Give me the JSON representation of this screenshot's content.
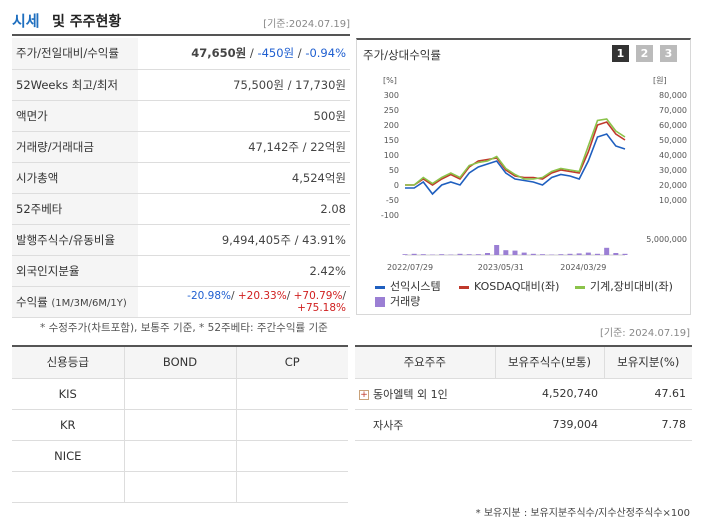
{
  "header": {
    "title_a": "시세",
    "title_b": "및 주주현황",
    "date": "[기준:2024.07.19]"
  },
  "info_rows": [
    {
      "label": "주가/전일대비/수익률",
      "price": "47,650원",
      "sep1": " / ",
      "change": "-450원",
      "sep2": " / ",
      "rate": "-0.94%"
    },
    {
      "label": "52Weeks 최고/최저",
      "value": "75,500원 / 17,730원"
    },
    {
      "label": "액면가",
      "value": "500원"
    },
    {
      "label": "거래량/거래대금",
      "value": "47,142주 / 22억원"
    },
    {
      "label": "시가총액",
      "value": "4,524억원"
    },
    {
      "label": "52주베타",
      "value": "2.08"
    },
    {
      "label": "발행주식수/유동비율",
      "value": "9,494,405주 / 43.91%"
    },
    {
      "label": "외국인지분율",
      "value": "2.42%"
    },
    {
      "label": "수익률",
      "sub": "(1M/3M/6M/1Y)",
      "r1": "-20.98%",
      "r2": "+20.33%",
      "r3": "+70.79%",
      "r4": "+75.18%",
      "sep": "/ "
    }
  ],
  "note1": "* 수정주가(차트포함), 보통주 기준, * 52주베타: 주간수익률 기준",
  "note_date": "[기준: 2024.07.19]",
  "chart_panel": {
    "title": "주가/상대수익률",
    "tabs": [
      "1",
      "2",
      "3"
    ]
  },
  "chart_data": {
    "type": "line",
    "left_unit": "[%]",
    "right_unit": "[원]",
    "left_ticks": [
      "300",
      "250",
      "200",
      "150",
      "100",
      "50",
      "0",
      "-50",
      "-100"
    ],
    "right_ticks": [
      "80,000",
      "70,000",
      "60,000",
      "50,000",
      "40,000",
      "30,000",
      "20,000",
      "10,000"
    ],
    "volume_tick": "5,000,000",
    "x_labels": [
      "2022/07/29",
      "2023/05/31",
      "2024/03/29"
    ],
    "series": [
      {
        "name": "선익시스템",
        "color": "#1f5fbf",
        "values": [
          -10,
          -10,
          10,
          -30,
          0,
          10,
          0,
          40,
          60,
          70,
          80,
          40,
          20,
          15,
          10,
          0,
          25,
          35,
          30,
          20,
          80,
          160,
          170,
          130,
          120
        ]
      },
      {
        "name": "KOSDAQ대비(좌)",
        "color": "#c0392b",
        "values": [
          0,
          0,
          20,
          0,
          20,
          35,
          20,
          60,
          80,
          85,
          90,
          50,
          30,
          25,
          25,
          20,
          40,
          50,
          45,
          40,
          110,
          200,
          210,
          170,
          150
        ]
      },
      {
        "name": "기계,장비대비(좌)",
        "color": "#8bc34a",
        "values": [
          0,
          0,
          25,
          5,
          25,
          40,
          25,
          65,
          75,
          80,
          95,
          55,
          35,
          20,
          20,
          25,
          45,
          55,
          50,
          45,
          130,
          215,
          220,
          180,
          160
        ]
      }
    ],
    "volume": {
      "name": "거래량",
      "color": "#9b7fd4",
      "values": [
        0.2,
        0.3,
        0.2,
        0.1,
        0.2,
        0.1,
        0.3,
        0.2,
        0.2,
        0.5,
        2.5,
        1.2,
        1.1,
        0.6,
        0.3,
        0.2,
        0.1,
        0.2,
        0.3,
        0.4,
        0.6,
        0.3,
        1.8,
        0.5,
        0.3
      ]
    }
  },
  "grade_table": {
    "headers": [
      "신용등급",
      "BOND",
      "CP"
    ],
    "rows": [
      {
        "agency": "KIS",
        "bond": "",
        "cp": ""
      },
      {
        "agency": "KR",
        "bond": "",
        "cp": ""
      },
      {
        "agency": "NICE",
        "bond": "",
        "cp": ""
      },
      {
        "agency": "",
        "bond": "",
        "cp": ""
      }
    ]
  },
  "holders_table": {
    "headers": [
      "주요주주",
      "보유주식수(보통)",
      "보유지분(%)"
    ],
    "rows": [
      {
        "name": "동아엘텍 외 1인",
        "shares": "4,520,740",
        "pct": "47.61",
        "expandable": true
      },
      {
        "name": "자사주",
        "shares": "739,004",
        "pct": "7.78",
        "expandable": false
      }
    ]
  },
  "note2": "* 보유지분 : 보유지분주식수/지수산정주식수×100"
}
